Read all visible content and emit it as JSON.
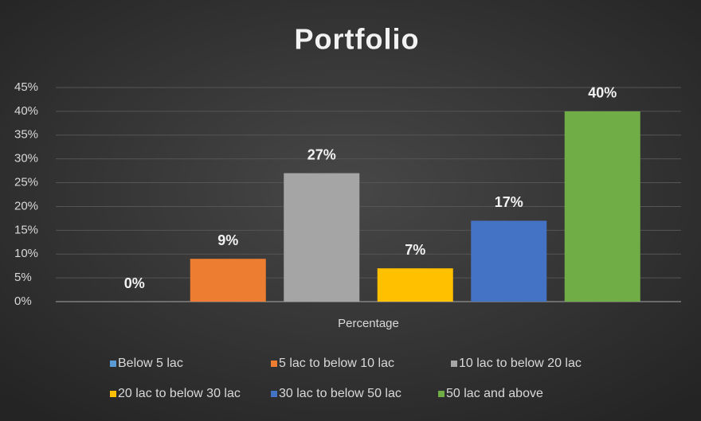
{
  "chart_data": {
    "type": "bar",
    "title": "Portfolio",
    "categories": [
      "Percentage"
    ],
    "series": [
      {
        "name": "Below 5 lac",
        "color": "#5b9bd5",
        "values": [
          0
        ],
        "value_labels": [
          "0%"
        ]
      },
      {
        "name": "5 lac to below 10 lac",
        "color": "#ed7d31",
        "values": [
          9
        ],
        "value_labels": [
          "9%"
        ]
      },
      {
        "name": "10 lac to below 20 lac",
        "color": "#a5a5a5",
        "values": [
          27
        ],
        "value_labels": [
          "27%"
        ]
      },
      {
        "name": "20 lac to below 30 lac",
        "color": "#ffc000",
        "values": [
          7
        ],
        "value_labels": [
          "7%"
        ]
      },
      {
        "name": "30 lac to below 50 lac",
        "color": "#4472c4",
        "values": [
          17
        ],
        "value_labels": [
          "17%"
        ]
      },
      {
        "name": "50 lac and above",
        "color": "#70ad47",
        "values": [
          40
        ],
        "value_labels": [
          "40%"
        ]
      }
    ],
    "ylim": [
      0,
      45
    ],
    "yticks": [
      {
        "value": 0,
        "label": "0%"
      },
      {
        "value": 5,
        "label": "5%"
      },
      {
        "value": 10,
        "label": "10%"
      },
      {
        "value": 15,
        "label": "15%"
      },
      {
        "value": 20,
        "label": "20%"
      },
      {
        "value": 25,
        "label": "25%"
      },
      {
        "value": 30,
        "label": "30%"
      },
      {
        "value": 35,
        "label": "35%"
      },
      {
        "value": 40,
        "label": "40%"
      },
      {
        "value": 45,
        "label": "45%"
      }
    ],
    "grid": true,
    "legend": "bottom"
  }
}
